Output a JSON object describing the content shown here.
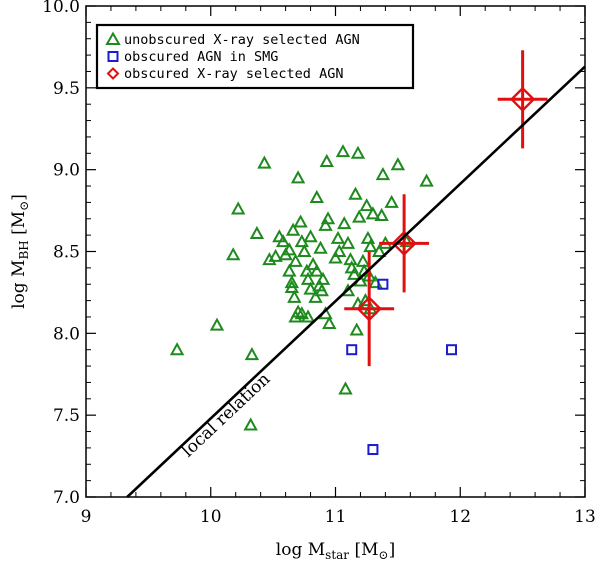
{
  "chart_data": {
    "type": "scatter",
    "xlabel": {
      "main": "log M",
      "sub": "star",
      "unit": " [M",
      "sun": "⊙",
      "close": "]"
    },
    "ylabel": {
      "main": "log M",
      "sub": "BH",
      "unit": " [M",
      "sun": "⊙",
      "close": "]"
    },
    "xlim": [
      9,
      13
    ],
    "ylim": [
      7.0,
      10.0
    ],
    "x_ticks": [
      9,
      10,
      11,
      12,
      13
    ],
    "x_tick_labels": [
      "9",
      "10",
      "11",
      "12",
      "13"
    ],
    "y_ticks": [
      7.0,
      7.5,
      8.0,
      8.5,
      9.0,
      9.5,
      10.0
    ],
    "y_tick_labels": [
      "7.0",
      "7.5",
      "8.0",
      "8.5",
      "9.0",
      "9.5",
      "10.0"
    ],
    "legend": {
      "location": "top-left",
      "entries": [
        {
          "label": "unobscured X-ray selected AGN",
          "marker": "triangle",
          "color": "#1e8a1e"
        },
        {
          "label": "obscured AGN in SMG",
          "marker": "square",
          "color": "#1c1ccc"
        },
        {
          "label": "obscured X-ray selected AGN",
          "marker": "diamond",
          "color": "#e01010"
        }
      ]
    },
    "relation": {
      "label": "local relation",
      "color": "#000000",
      "points": [
        [
          9.33,
          7.0
        ],
        [
          13.0,
          9.63
        ]
      ]
    },
    "series": [
      {
        "name": "unobscured X-ray selected AGN",
        "marker": "triangle",
        "color": "#1e8a1e",
        "points": [
          [
            9.73,
            7.9
          ],
          [
            10.05,
            8.05
          ],
          [
            10.22,
            8.76
          ],
          [
            10.33,
            7.87
          ],
          [
            10.32,
            7.44
          ],
          [
            10.43,
            9.04
          ],
          [
            10.37,
            8.61
          ],
          [
            10.47,
            8.45
          ],
          [
            10.52,
            8.47
          ],
          [
            10.55,
            8.59
          ],
          [
            10.58,
            8.56
          ],
          [
            10.6,
            8.48
          ],
          [
            10.63,
            8.51
          ],
          [
            10.63,
            8.38
          ],
          [
            10.65,
            8.31
          ],
          [
            10.65,
            8.28
          ],
          [
            10.66,
            8.63
          ],
          [
            10.67,
            8.22
          ],
          [
            10.68,
            8.44
          ],
          [
            10.68,
            8.1
          ],
          [
            10.7,
            8.95
          ],
          [
            10.7,
            8.13
          ],
          [
            10.72,
            8.68
          ],
          [
            10.73,
            8.56
          ],
          [
            10.73,
            8.12
          ],
          [
            10.75,
            8.5
          ],
          [
            10.77,
            8.38
          ],
          [
            10.78,
            8.33
          ],
          [
            10.8,
            8.59
          ],
          [
            10.8,
            8.27
          ],
          [
            10.82,
            8.42
          ],
          [
            10.84,
            8.22
          ],
          [
            10.85,
            8.83
          ],
          [
            10.85,
            8.38
          ],
          [
            10.87,
            8.29
          ],
          [
            10.88,
            8.52
          ],
          [
            10.89,
            8.26
          ],
          [
            10.9,
            8.33
          ],
          [
            10.92,
            8.66
          ],
          [
            10.92,
            8.12
          ],
          [
            10.93,
            9.05
          ],
          [
            10.94,
            8.7
          ],
          [
            10.95,
            8.06
          ],
          [
            11.0,
            8.46
          ],
          [
            11.02,
            8.58
          ],
          [
            11.03,
            8.5
          ],
          [
            11.06,
            9.11
          ],
          [
            11.07,
            8.67
          ],
          [
            11.08,
            7.66
          ],
          [
            11.1,
            8.55
          ],
          [
            11.12,
            8.45
          ],
          [
            11.13,
            8.4
          ],
          [
            11.15,
            8.36
          ],
          [
            11.16,
            8.85
          ],
          [
            11.17,
            8.02
          ],
          [
            11.18,
            9.1
          ],
          [
            11.18,
            8.18
          ],
          [
            11.19,
            8.71
          ],
          [
            11.2,
            8.32
          ],
          [
            11.22,
            8.44
          ],
          [
            11.23,
            8.38
          ],
          [
            11.24,
            8.2
          ],
          [
            11.25,
            8.78
          ],
          [
            11.26,
            8.58
          ],
          [
            11.27,
            8.35
          ],
          [
            11.28,
            8.53
          ],
          [
            11.3,
            8.73
          ],
          [
            11.32,
            8.31
          ],
          [
            11.35,
            8.5
          ],
          [
            11.37,
            8.72
          ],
          [
            11.38,
            8.97
          ],
          [
            11.4,
            8.55
          ],
          [
            11.45,
            8.8
          ],
          [
            11.5,
            9.03
          ],
          [
            11.57,
            8.56
          ],
          [
            11.73,
            8.93
          ],
          [
            10.18,
            8.48
          ],
          [
            10.78,
            8.1
          ],
          [
            11.1,
            8.26
          ],
          [
            11.28,
            8.15
          ]
        ]
      },
      {
        "name": "obscured AGN in SMG",
        "marker": "square",
        "color": "#1c1ccc",
        "points": [
          [
            11.13,
            7.9
          ],
          [
            11.38,
            8.3
          ],
          [
            11.3,
            7.29
          ],
          [
            11.93,
            7.9
          ]
        ]
      },
      {
        "name": "obscured X-ray selected AGN",
        "marker": "diamond",
        "color": "#e01010",
        "points": [
          {
            "x": 12.5,
            "y": 9.43,
            "xerr": 0.2,
            "yerr": [
              0.3,
              0.3
            ]
          },
          {
            "x": 11.55,
            "y": 8.55,
            "xerr": 0.2,
            "yerr": [
              0.3,
              0.3
            ]
          },
          {
            "x": 11.27,
            "y": 8.15,
            "xerr": 0.2,
            "yerr": [
              0.35,
              0.35
            ]
          }
        ]
      }
    ]
  }
}
